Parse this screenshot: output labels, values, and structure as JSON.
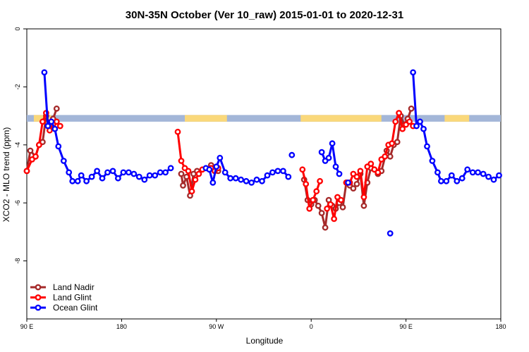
{
  "chart_data": {
    "type": "line",
    "title": "30N-35N October (Ver 10_raw)   2015-01-01 to 2020-12-31",
    "xlabel": "Longitude",
    "ylabel": "XCO2 - MLO trend (ppm)",
    "xlim": [
      -90,
      180
    ],
    "ylim": [
      -10,
      0
    ],
    "x_ticks": [
      {
        "value": -90,
        "label": "90 E"
      },
      {
        "value": -36,
        "label": "180"
      },
      {
        "value": 18,
        "label": "90 W"
      },
      {
        "value": 72,
        "label": "0"
      },
      {
        "value": 126,
        "label": "90 E"
      },
      {
        "value": 180,
        "label": "180"
      }
    ],
    "y_ticks": [
      0,
      -2,
      -4,
      -6,
      -8
    ],
    "grid": false,
    "legend_position": "bottom-left",
    "land_mask_band": {
      "y_range": [
        -3.2,
        -2.97
      ],
      "ocean_color": "#a3b6d8",
      "land_color": "#fad87a",
      "land_segments": [
        [
          -86,
          -76
        ],
        [
          0,
          24
        ],
        [
          66,
          112
        ],
        [
          148,
          162
        ]
      ]
    },
    "series": [
      {
        "name": "Land Nadir",
        "color": "#a52a2a",
        "segments": [
          [
            [
              -90,
              -4.9
            ],
            [
              -88,
              -4.2
            ],
            [
              -85,
              -4.4
            ],
            [
              -83,
              -4.0
            ],
            [
              -81,
              -3.9
            ],
            [
              -79,
              -3.0
            ],
            [
              -77,
              -3.3
            ],
            [
              -75,
              -3.1
            ],
            [
              -73,
              -2.75
            ]
          ],
          [
            [
              -2,
              -5.0
            ],
            [
              -1,
              -5.4
            ],
            [
              1,
              -5.1
            ],
            [
              3,
              -5.75
            ],
            [
              5,
              -5.0
            ],
            [
              7,
              -4.9
            ]
          ],
          [
            [
              15,
              -4.7
            ],
            [
              17,
              -4.8
            ],
            [
              19,
              -4.9
            ]
          ],
          [
            [
              68,
              -5.2
            ],
            [
              70,
              -5.9
            ],
            [
              72,
              -6.05
            ],
            [
              74,
              -5.9
            ],
            [
              76,
              -6.1
            ],
            [
              78,
              -6.35
            ],
            [
              80,
              -6.85
            ],
            [
              82,
              -5.9
            ],
            [
              84,
              -6.1
            ],
            [
              86,
              -6.2
            ],
            [
              88,
              -6.0
            ],
            [
              90,
              -6.15
            ],
            [
              92,
              -5.3
            ],
            [
              94,
              -5.4
            ],
            [
              96,
              -5.5
            ],
            [
              98,
              -5.35
            ],
            [
              100,
              -5.0
            ],
            [
              102,
              -6.1
            ],
            [
              104,
              -5.3
            ],
            [
              106,
              -4.8
            ],
            [
              108,
              -4.85
            ],
            [
              110,
              -5.0
            ],
            [
              112,
              -4.9
            ],
            [
              115,
              -4.2
            ],
            [
              117,
              -4.4
            ],
            [
              119,
              -4.0
            ],
            [
              121,
              -3.9
            ],
            [
              123,
              -3.0
            ],
            [
              125,
              -3.3
            ],
            [
              127,
              -3.1
            ],
            [
              129,
              -2.75
            ]
          ]
        ]
      },
      {
        "name": "Land Glint",
        "color": "#ff0000",
        "segments": [
          [
            [
              -90,
              -4.9
            ],
            [
              -87,
              -4.5
            ],
            [
              -85,
              -4.4
            ],
            [
              -83,
              -4.0
            ],
            [
              -81,
              -3.2
            ],
            [
              -79,
              -2.9
            ],
            [
              -77,
              -3.5
            ],
            [
              -75,
              -3.3
            ],
            [
              -73,
              -3.2
            ],
            [
              -71,
              -3.35
            ]
          ],
          [
            [
              -4,
              -3.55
            ],
            [
              -2,
              -4.55
            ],
            [
              0,
              -4.8
            ],
            [
              2,
              -4.9
            ],
            [
              4,
              -5.6
            ],
            [
              6,
              -5.2
            ],
            [
              8,
              -5.0
            ],
            [
              10,
              -4.85
            ]
          ],
          [
            [
              15,
              -4.8
            ],
            [
              17,
              -4.9
            ],
            [
              19,
              -4.8
            ]
          ],
          [
            [
              67,
              -4.85
            ],
            [
              69,
              -5.35
            ],
            [
              71,
              -6.2
            ],
            [
              73,
              -5.9
            ],
            [
              75,
              -5.6
            ],
            [
              77,
              -5.25
            ]
          ],
          [
            [
              81,
              -6.2
            ],
            [
              83,
              -6.05
            ],
            [
              85,
              -6.55
            ],
            [
              87,
              -5.8
            ],
            [
              89,
              -5.9
            ]
          ],
          [
            [
              92,
              -5.3
            ],
            [
              94,
              -5.3
            ],
            [
              96,
              -5.0
            ],
            [
              98,
              -5.1
            ],
            [
              100,
              -4.9
            ],
            [
              102,
              -5.8
            ],
            [
              104,
              -4.75
            ],
            [
              106,
              -4.65
            ],
            [
              108,
              -4.85
            ],
            [
              110,
              -4.95
            ],
            [
              112,
              -4.5
            ],
            [
              114,
              -4.4
            ],
            [
              116,
              -4.0
            ],
            [
              118,
              -3.95
            ],
            [
              120,
              -3.2
            ],
            [
              122,
              -2.9
            ],
            [
              124,
              -3.45
            ],
            [
              126,
              -3.3
            ],
            [
              128,
              -3.2
            ],
            [
              130,
              -3.35
            ]
          ]
        ]
      },
      {
        "name": "Ocean Glint",
        "color": "#0000ff",
        "segments": [
          [
            [
              -80,
              -1.5
            ],
            [
              -78,
              -3.35
            ],
            [
              -76,
              -3.2
            ],
            [
              -74,
              -3.45
            ],
            [
              -72,
              -4.05
            ],
            [
              -69,
              -4.55
            ],
            [
              -66,
              -4.95
            ],
            [
              -64,
              -5.25
            ],
            [
              -61,
              -5.25
            ],
            [
              -59,
              -5.05
            ],
            [
              -56,
              -5.25
            ],
            [
              -53,
              -5.1
            ],
            [
              -50,
              -4.9
            ],
            [
              -47,
              -5.15
            ],
            [
              -44,
              -4.95
            ],
            [
              -41,
              -4.9
            ],
            [
              -38,
              -5.15
            ],
            [
              -35,
              -4.95
            ],
            [
              -32,
              -4.95
            ],
            [
              -29,
              -5.0
            ],
            [
              -26,
              -5.1
            ],
            [
              -23,
              -5.2
            ],
            [
              -20,
              -5.05
            ],
            [
              -17,
              -5.05
            ],
            [
              -14,
              -4.95
            ],
            [
              -11,
              -4.95
            ],
            [
              -8,
              -4.8
            ]
          ],
          [
            [
              12,
              -4.8
            ],
            [
              14,
              -4.85
            ],
            [
              16,
              -5.3
            ],
            [
              18,
              -4.75
            ],
            [
              20,
              -4.45
            ],
            [
              23,
              -4.95
            ],
            [
              26,
              -5.15
            ],
            [
              29,
              -5.15
            ],
            [
              32,
              -5.2
            ],
            [
              35,
              -5.25
            ],
            [
              38,
              -5.3
            ],
            [
              41,
              -5.2
            ],
            [
              44,
              -5.25
            ],
            [
              47,
              -5.05
            ],
            [
              50,
              -4.95
            ],
            [
              53,
              -4.9
            ],
            [
              56,
              -4.9
            ],
            [
              59,
              -5.1
            ]
          ],
          [
            [
              61,
              -4.35
            ]
          ],
          [
            [
              78,
              -4.25
            ],
            [
              80,
              -4.55
            ],
            [
              82,
              -4.45
            ],
            [
              84,
              -3.95
            ],
            [
              86,
              -4.75
            ],
            [
              88,
              -5.0
            ]
          ],
          [
            [
              93,
              -5.3
            ]
          ],
          [
            [
              117,
              -7.05
            ]
          ],
          [
            [
              130,
              -1.5
            ],
            [
              132,
              -3.35
            ],
            [
              134,
              -3.2
            ],
            [
              136,
              -3.45
            ],
            [
              138,
              -4.05
            ],
            [
              141,
              -4.55
            ],
            [
              144,
              -4.95
            ],
            [
              146,
              -5.25
            ],
            [
              149,
              -5.25
            ],
            [
              152,
              -5.05
            ],
            [
              155,
              -5.25
            ],
            [
              158,
              -5.15
            ],
            [
              161,
              -4.85
            ],
            [
              164,
              -4.95
            ],
            [
              167,
              -4.95
            ],
            [
              170,
              -5.0
            ],
            [
              173,
              -5.1
            ],
            [
              176,
              -5.2
            ],
            [
              179,
              -5.05
            ]
          ]
        ]
      }
    ]
  }
}
